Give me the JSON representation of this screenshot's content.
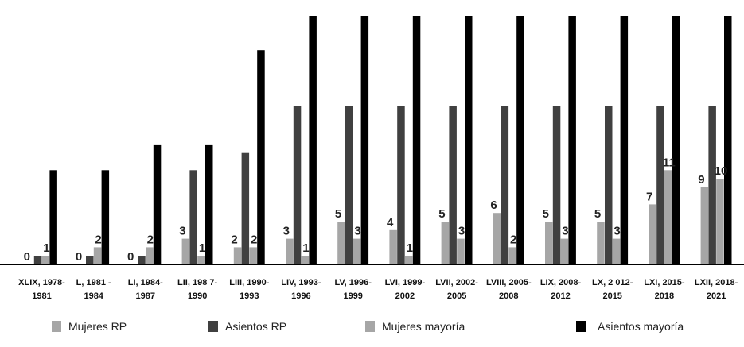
{
  "colors": {
    "mujeres_rp": "#a6a6a6",
    "asientos_rp": "#404040",
    "mujeres_mayoria": "#a6a6a6",
    "asientos_mayoria": "#000000"
  },
  "chart_data": {
    "type": "bar",
    "categories": [
      [
        "XLIX, 1978-",
        "1981"
      ],
      [
        "L, 1981 -",
        "1984"
      ],
      [
        "LI, 1984-",
        "1987"
      ],
      [
        "LII, 198 7-",
        "1990"
      ],
      [
        "LIII, 1990-",
        "1993"
      ],
      [
        "LIV, 1993-",
        "1996"
      ],
      [
        "LV, 1996-",
        "1999"
      ],
      [
        "LVI, 1999-",
        "2002"
      ],
      [
        "LVII, 2002-",
        "2005"
      ],
      [
        "LVIII, 2005-",
        "2008"
      ],
      [
        "LIX, 2008-",
        "2012"
      ],
      [
        "LX, 2 012-",
        "2015"
      ],
      [
        "LXI, 2015-",
        "2018"
      ],
      [
        "LXII, 2018-",
        "2021"
      ]
    ],
    "series": [
      {
        "name": "Mujeres RP",
        "values": [
          0,
          0,
          0,
          3,
          2,
          3,
          5,
          4,
          5,
          6,
          5,
          5,
          7,
          9
        ],
        "labels": [
          "0",
          "0",
          "0",
          "3",
          "2",
          "3",
          "5",
          "4",
          "5",
          "6",
          "5",
          "5",
          "7",
          "9"
        ]
      },
      {
        "name": "Asientos RP",
        "values": [
          1,
          1,
          1,
          11,
          13,
          18.5,
          18.5,
          18.5,
          18.5,
          18.5,
          18.5,
          18.5,
          18.5,
          18.5
        ],
        "labels": []
      },
      {
        "name": "Mujeres mayoría",
        "values": [
          1,
          2,
          2,
          1,
          2,
          1,
          3,
          1,
          3,
          2,
          3,
          3,
          11,
          10
        ],
        "labels": [
          "1",
          "2",
          "2",
          "1",
          "2",
          "1",
          "3",
          "1",
          "3",
          "2",
          "3",
          "3",
          "11",
          "10"
        ]
      },
      {
        "name": "Asientos mayoría",
        "values": [
          11,
          11,
          14,
          14,
          25,
          29,
          29,
          29,
          29,
          29,
          29,
          29,
          29,
          29
        ],
        "labels": []
      }
    ],
    "legend": {
      "position": "bottom",
      "entries": [
        "Mujeres RP",
        "Asientos RP",
        "Mujeres mayoría",
        "Asientos mayoría"
      ]
    },
    "ylim": [
      0,
      29
    ],
    "grid": false
  }
}
